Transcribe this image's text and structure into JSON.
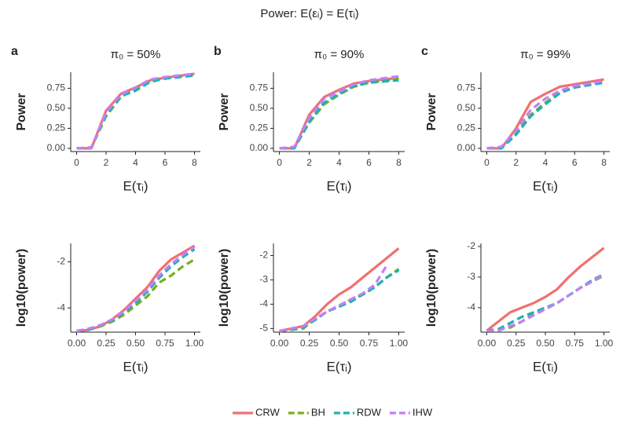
{
  "title": "Power: E(εᵢ) = E(τᵢ)",
  "chart_data": [
    {
      "type": "line",
      "panel_label": "a",
      "title": "π₀ = 50%",
      "xlabel": "E(τᵢ)",
      "ylabel": "Power",
      "x": [
        0,
        1,
        2,
        3,
        4,
        5,
        6,
        8
      ],
      "xlim": [
        -0.4,
        8.4
      ],
      "xticks": [
        0,
        2,
        4,
        6,
        8
      ],
      "ylim": [
        -0.04,
        0.95
      ],
      "yticks": [
        {
          "value": 0,
          "label": "0.00"
        },
        {
          "value": 0.25,
          "label": "0.25"
        },
        {
          "value": 0.5,
          "label": "0.50"
        },
        {
          "value": 0.75,
          "label": "0.75"
        }
      ],
      "series": [
        {
          "name": "CRW",
          "color": "#f07070",
          "dashed": false,
          "values": [
            0,
            0,
            0.47,
            0.68,
            0.76,
            0.85,
            0.88,
            0.93
          ]
        },
        {
          "name": "BH",
          "color": "#7aad1a",
          "dashed": true,
          "values": [
            0,
            0.01,
            0.4,
            0.64,
            0.74,
            0.84,
            0.88,
            0.92
          ]
        },
        {
          "name": "RDW",
          "color": "#19b5b0",
          "dashed": true,
          "values": [
            0,
            0.01,
            0.42,
            0.65,
            0.72,
            0.83,
            0.87,
            0.91
          ]
        },
        {
          "name": "IHW",
          "color": "#c77cff",
          "dashed": true,
          "values": [
            0,
            0.01,
            0.45,
            0.67,
            0.76,
            0.86,
            0.89,
            0.93
          ]
        }
      ]
    },
    {
      "type": "line",
      "panel_label": "b",
      "title": "π₀ = 90%",
      "xlabel": "E(τᵢ)",
      "ylabel": "Power",
      "x": [
        0,
        1,
        2,
        3,
        4,
        5,
        6,
        8
      ],
      "xlim": [
        -0.4,
        8.4
      ],
      "xticks": [
        0,
        2,
        4,
        6,
        8
      ],
      "ylim": [
        -0.04,
        0.95
      ],
      "yticks": [
        {
          "value": 0,
          "label": "0.00"
        },
        {
          "value": 0.25,
          "label": "0.25"
        },
        {
          "value": 0.5,
          "label": "0.50"
        },
        {
          "value": 0.75,
          "label": "0.75"
        }
      ],
      "series": [
        {
          "name": "CRW",
          "color": "#f07070",
          "dashed": false,
          "values": [
            0,
            0,
            0.42,
            0.64,
            0.73,
            0.81,
            0.84,
            0.88
          ]
        },
        {
          "name": "BH",
          "color": "#7aad1a",
          "dashed": true,
          "values": [
            0,
            0.01,
            0.32,
            0.55,
            0.67,
            0.77,
            0.82,
            0.87
          ]
        },
        {
          "name": "RDW",
          "color": "#19b5b0",
          "dashed": true,
          "values": [
            0,
            0,
            0.33,
            0.57,
            0.68,
            0.78,
            0.82,
            0.85
          ]
        },
        {
          "name": "IHW",
          "color": "#c77cff",
          "dashed": true,
          "values": [
            0,
            0.02,
            0.38,
            0.62,
            0.71,
            0.8,
            0.85,
            0.9
          ]
        }
      ]
    },
    {
      "type": "line",
      "panel_label": "c",
      "title": "π₀ = 99%",
      "xlabel": "E(τᵢ)",
      "ylabel": "Power",
      "x": [
        0,
        1,
        2,
        3,
        4,
        5,
        6,
        8
      ],
      "xlim": [
        -0.4,
        8.4
      ],
      "xticks": [
        0,
        2,
        4,
        6,
        8
      ],
      "ylim": [
        -0.04,
        0.95
      ],
      "yticks": [
        {
          "value": 0,
          "label": "0.00"
        },
        {
          "value": 0.25,
          "label": "0.25"
        },
        {
          "value": 0.5,
          "label": "0.50"
        },
        {
          "value": 0.75,
          "label": "0.75"
        }
      ],
      "series": [
        {
          "name": "CRW",
          "color": "#f07070",
          "dashed": false,
          "values": [
            0,
            0,
            0.25,
            0.58,
            0.68,
            0.77,
            0.8,
            0.86
          ]
        },
        {
          "name": "BH",
          "color": "#7aad1a",
          "dashed": true,
          "values": [
            0,
            0.01,
            0.18,
            0.42,
            0.57,
            0.7,
            0.76,
            0.83
          ]
        },
        {
          "name": "RDW",
          "color": "#19b5b0",
          "dashed": true,
          "values": [
            0,
            0,
            0.17,
            0.4,
            0.55,
            0.69,
            0.76,
            0.82
          ]
        },
        {
          "name": "IHW",
          "color": "#c77cff",
          "dashed": true,
          "values": [
            0,
            0.02,
            0.22,
            0.48,
            0.62,
            0.72,
            0.78,
            0.84
          ]
        }
      ]
    },
    {
      "type": "line",
      "xlabel": "E(τᵢ)",
      "ylabel": "log10(power)",
      "x": [
        0,
        0.1,
        0.2,
        0.3,
        0.4,
        0.5,
        0.6,
        0.7,
        0.8,
        0.9,
        1.0
      ],
      "xlim": [
        -0.05,
        1.05
      ],
      "xticks": [
        {
          "value": 0,
          "label": "0.00"
        },
        {
          "value": 0.25,
          "label": "0.25"
        },
        {
          "value": 0.5,
          "label": "0.50"
        },
        {
          "value": 0.75,
          "label": "0.75"
        },
        {
          "value": 1,
          "label": "1.00"
        }
      ],
      "ylim": [
        -5.05,
        -1.2
      ],
      "yticks": [
        -4,
        -2
      ],
      "series": [
        {
          "name": "CRW",
          "color": "#f07070",
          "dashed": false,
          "values": [
            -5,
            -4.95,
            -4.8,
            -4.5,
            -4.1,
            -3.6,
            -3.1,
            -2.4,
            -1.9,
            -1.6,
            -1.3
          ]
        },
        {
          "name": "BH",
          "color": "#7aad1a",
          "dashed": true,
          "values": [
            -5,
            -4.95,
            -4.8,
            -4.6,
            -4.3,
            -3.9,
            -3.5,
            -2.9,
            -2.6,
            -2.2,
            -1.9
          ]
        },
        {
          "name": "RDW",
          "color": "#19b5b0",
          "dashed": true,
          "values": [
            -5,
            -4.95,
            -4.75,
            -4.55,
            -4.2,
            -3.8,
            -3.3,
            -2.7,
            -2.2,
            -1.8,
            -1.45
          ]
        },
        {
          "name": "IHW",
          "color": "#c77cff",
          "dashed": true,
          "values": [
            -5,
            -4.9,
            -4.75,
            -4.5,
            -4.15,
            -3.7,
            -3.2,
            -2.6,
            -2.1,
            -1.7,
            -1.35
          ]
        }
      ]
    },
    {
      "type": "line",
      "xlabel": "E(τᵢ)",
      "ylabel": "log10(power)",
      "x": [
        0,
        0.1,
        0.2,
        0.3,
        0.4,
        0.5,
        0.6,
        0.7,
        0.8,
        0.9,
        1.0
      ],
      "xlim": [
        -0.05,
        1.05
      ],
      "xticks": [
        {
          "value": 0,
          "label": "0.00"
        },
        {
          "value": 0.25,
          "label": "0.25"
        },
        {
          "value": 0.5,
          "label": "0.50"
        },
        {
          "value": 0.75,
          "label": "0.75"
        },
        {
          "value": 1,
          "label": "1.00"
        }
      ],
      "ylim": [
        -5.15,
        -1.5
      ],
      "yticks": [
        -5,
        -4,
        -3,
        -2
      ],
      "series": [
        {
          "name": "CRW",
          "color": "#f07070",
          "dashed": false,
          "values": [
            -5.1,
            -5,
            -4.9,
            -4.5,
            -4,
            -3.6,
            -3.3,
            -2.9,
            -2.5,
            -2.1,
            -1.7
          ]
        },
        {
          "name": "BH",
          "color": "#7aad1a",
          "dashed": true,
          "values": [
            -5.1,
            -5.05,
            -5,
            -4.6,
            -4.3,
            -4.1,
            -3.8,
            -3.6,
            -3.3,
            -2.9,
            -2.55
          ]
        },
        {
          "name": "RDW",
          "color": "#19b5b0",
          "dashed": true,
          "values": [
            -5.1,
            -5.05,
            -4.95,
            -4.65,
            -4.3,
            -4.1,
            -3.9,
            -3.6,
            -3.3,
            -2.9,
            -2.6
          ]
        },
        {
          "name": "IHW",
          "color": "#c77cff",
          "dashed": true,
          "values": [
            -5.1,
            -5,
            -4.9,
            -4.6,
            -4.3,
            -4.05,
            -3.8,
            -3.55,
            -3.2,
            -2.4,
            null
          ]
        }
      ]
    },
    {
      "type": "line",
      "xlabel": "E(τᵢ)",
      "ylabel": "log10(power)",
      "x": [
        0,
        0.1,
        0.2,
        0.3,
        0.4,
        0.5,
        0.6,
        0.7,
        0.8,
        0.9,
        1.0
      ],
      "xlim": [
        -0.05,
        1.05
      ],
      "xticks": [
        {
          "value": 0,
          "label": "0.00"
        },
        {
          "value": 0.25,
          "label": "0.25"
        },
        {
          "value": 0.5,
          "label": "0.50"
        },
        {
          "value": 0.75,
          "label": "0.75"
        },
        {
          "value": 1,
          "label": "1.00"
        }
      ],
      "ylim": [
        -4.8,
        -1.9
      ],
      "yticks": [
        -4,
        -3,
        -2
      ],
      "series": [
        {
          "name": "CRW",
          "color": "#f07070",
          "dashed": false,
          "values": [
            -4.75,
            -4.45,
            -4.15,
            -4.0,
            -3.85,
            -3.65,
            -3.4,
            -3.0,
            -2.65,
            -2.35,
            -2.05
          ]
        },
        {
          "name": "BH",
          "color": "#7aad1a",
          "dashed": true,
          "values": [
            -4.75,
            -4.7,
            -4.65,
            -4.45,
            -4.2,
            -4.05,
            -3.85,
            -3.6,
            -3.35,
            -3.15,
            -2.95
          ]
        },
        {
          "name": "RDW",
          "color": "#19b5b0",
          "dashed": true,
          "values": [
            -4.75,
            -4.7,
            -4.5,
            -4.3,
            -4.15,
            -4.0,
            -3.85,
            -3.6,
            -3.35,
            -3.1,
            -2.9
          ]
        },
        {
          "name": "IHW",
          "color": "#c77cff",
          "dashed": true,
          "values": [
            -4.75,
            -4.75,
            -4.6,
            -4.45,
            -4.25,
            -4.05,
            -3.85,
            -3.6,
            -3.35,
            -3.15,
            -2.9
          ]
        }
      ]
    }
  ]
}
